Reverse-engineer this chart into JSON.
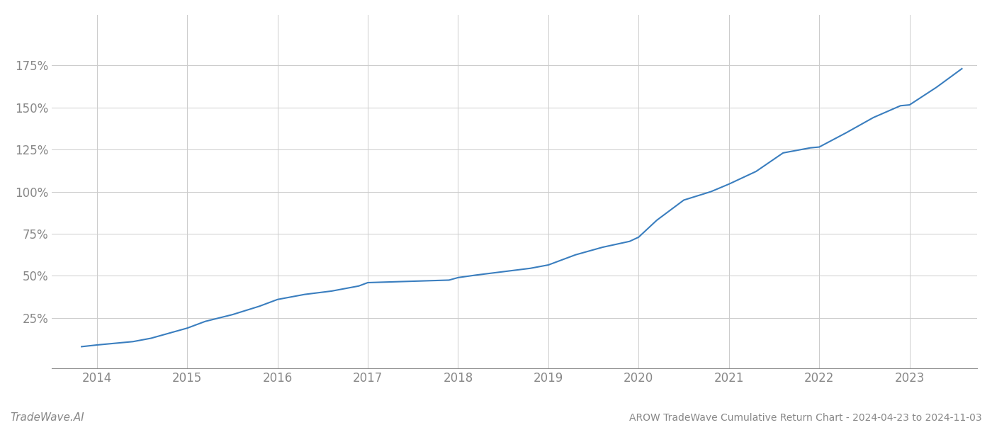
{
  "title": "AROW TradeWave Cumulative Return Chart - 2024-04-23 to 2024-11-03",
  "watermark": "TradeWave.AI",
  "line_color": "#3a7ebf",
  "background_color": "#ffffff",
  "grid_color": "#cccccc",
  "text_color": "#888888",
  "x_years": [
    2014,
    2015,
    2016,
    2017,
    2018,
    2019,
    2020,
    2021,
    2022,
    2023
  ],
  "y_ticks": [
    0.25,
    0.5,
    0.75,
    1.0,
    1.25,
    1.5,
    1.75
  ],
  "y_tick_labels": [
    "25%",
    "50%",
    "75%",
    "100%",
    "125%",
    "150%",
    "175%"
  ],
  "data_x": [
    2013.83,
    2014.0,
    2014.2,
    2014.4,
    2014.6,
    2014.8,
    2015.0,
    2015.2,
    2015.5,
    2015.8,
    2016.0,
    2016.3,
    2016.6,
    2016.9,
    2017.0,
    2017.3,
    2017.6,
    2017.9,
    2018.0,
    2018.2,
    2018.5,
    2018.8,
    2019.0,
    2019.3,
    2019.6,
    2019.9,
    2020.0,
    2020.2,
    2020.5,
    2020.8,
    2021.0,
    2021.3,
    2021.6,
    2021.9,
    2022.0,
    2022.3,
    2022.6,
    2022.9,
    2023.0,
    2023.3,
    2023.58
  ],
  "data_y": [
    0.08,
    0.09,
    0.1,
    0.11,
    0.13,
    0.16,
    0.19,
    0.23,
    0.27,
    0.32,
    0.36,
    0.39,
    0.41,
    0.44,
    0.46,
    0.465,
    0.47,
    0.475,
    0.49,
    0.505,
    0.525,
    0.545,
    0.565,
    0.625,
    0.67,
    0.705,
    0.73,
    0.83,
    0.95,
    1.0,
    1.045,
    1.12,
    1.23,
    1.26,
    1.265,
    1.35,
    1.44,
    1.51,
    1.515,
    1.62,
    1.73
  ],
  "xlim": [
    2013.5,
    2023.75
  ],
  "ylim": [
    -0.05,
    2.05
  ],
  "line_width": 1.5,
  "title_fontsize": 10,
  "tick_fontsize": 12,
  "watermark_fontsize": 11
}
